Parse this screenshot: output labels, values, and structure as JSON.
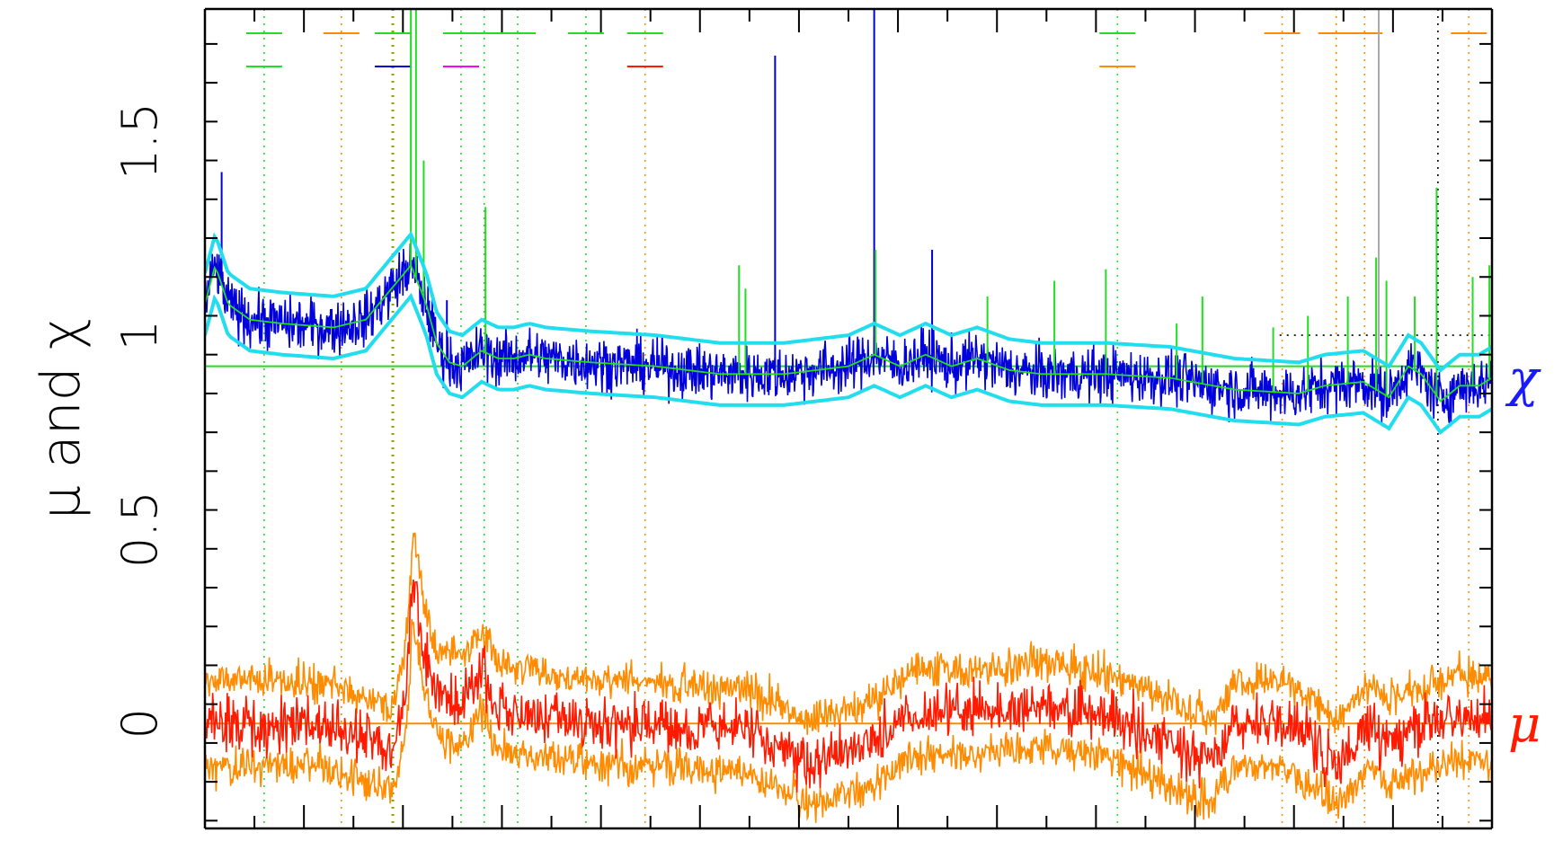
{
  "chart_data": {
    "type": "line",
    "ylabel": "μ and χ",
    "ylim": [
      -0.27,
      1.84
    ],
    "xlim": [
      0,
      1000
    ],
    "yticks": [
      {
        "value": 0,
        "label": "0"
      },
      {
        "value": 0.5,
        "label": "0.5"
      },
      {
        "value": 1,
        "label": "1"
      },
      {
        "value": 1.5,
        "label": "1.5"
      }
    ],
    "grid": false,
    "reference_lines": [
      {
        "name": "chi-unity-line",
        "y": 0.92,
        "color": "#22dd22"
      },
      {
        "name": "mu-zero-line",
        "y": 0.0,
        "color": "#ff8c00"
      },
      {
        "name": "dotted-reference-line",
        "y": 1.0,
        "x_from": 835,
        "x_to": 1000,
        "color": "#000000"
      }
    ],
    "series": [
      {
        "name": "χ",
        "color": "#0000dd",
        "label_color": "#1a1aff",
        "smooth_color": "#22dd22",
        "band_color": "#22ddee",
        "x": [
          0,
          8,
          18,
          35,
          60,
          100,
          125,
          145,
          160,
          172,
          180,
          190,
          200,
          215,
          228,
          240,
          252,
          265,
          300,
          350,
          400,
          450,
          500,
          520,
          540,
          560,
          580,
          600,
          625,
          650,
          700,
          750,
          800,
          850,
          870,
          900,
          920,
          935,
          945,
          960,
          975,
          990,
          1000
        ],
        "values": [
          1.08,
          1.18,
          1.08,
          1.04,
          1.03,
          1.02,
          1.04,
          1.12,
          1.18,
          1.08,
          0.98,
          0.93,
          0.92,
          0.96,
          0.94,
          0.94,
          0.95,
          0.94,
          0.93,
          0.92,
          0.9,
          0.9,
          0.92,
          0.95,
          0.92,
          0.95,
          0.92,
          0.94,
          0.91,
          0.9,
          0.9,
          0.89,
          0.86,
          0.85,
          0.87,
          0.88,
          0.84,
          0.92,
          0.9,
          0.83,
          0.87,
          0.87,
          0.89
        ],
        "band_halfwidth": 0.08
      },
      {
        "name": "μ",
        "color": "#ff1a00",
        "label_color": "#ff1a00",
        "band_color": "#ff8c00",
        "x": [
          0,
          40,
          90,
          130,
          145,
          155,
          162,
          170,
          180,
          200,
          215,
          225,
          260,
          320,
          360,
          420,
          470,
          520,
          550,
          600,
          650,
          700,
          750,
          780,
          800,
          840,
          880,
          905,
          920,
          950,
          975,
          1000
        ],
        "values": [
          0.0,
          0.0,
          0.0,
          -0.05,
          -0.08,
          0.05,
          0.38,
          0.2,
          0.08,
          0.05,
          0.15,
          0.05,
          0.02,
          0.0,
          0.0,
          -0.02,
          -0.1,
          -0.05,
          0.03,
          0.03,
          0.05,
          0.02,
          -0.05,
          -0.1,
          0.0,
          0.0,
          -0.1,
          0.0,
          -0.05,
          0.0,
          0.02,
          0.0
        ],
        "band_halfwidth": 0.11
      }
    ],
    "spikes": [
      {
        "x": 13,
        "value": 1.42,
        "color": "#0000dd"
      },
      {
        "x": 160,
        "value": 1.84,
        "color": "#22dd22"
      },
      {
        "x": 164,
        "value": 1.84,
        "color": "#22dd22"
      },
      {
        "x": 170,
        "value": 1.45,
        "color": "#22dd22"
      },
      {
        "x": 188,
        "value": 1.09,
        "color": "#0000dd"
      },
      {
        "x": 218,
        "value": 1.33,
        "color": "#22dd22"
      },
      {
        "x": 415,
        "value": 1.18,
        "color": "#22dd22"
      },
      {
        "x": 420,
        "value": 1.12,
        "color": "#22dd22"
      },
      {
        "x": 443,
        "value": 1.72,
        "color": "#0000dd"
      },
      {
        "x": 520,
        "value": 1.84,
        "color": "#0000dd"
      },
      {
        "x": 521,
        "value": 1.22,
        "color": "#22dd22"
      },
      {
        "x": 565,
        "value": 1.22,
        "color": "#0000dd"
      },
      {
        "x": 608,
        "value": 1.1,
        "color": "#22dd22"
      },
      {
        "x": 660,
        "value": 1.14,
        "color": "#22dd22"
      },
      {
        "x": 700,
        "value": 1.17,
        "color": "#22dd22"
      },
      {
        "x": 755,
        "value": 1.03,
        "color": "#22dd22"
      },
      {
        "x": 775,
        "value": 1.1,
        "color": "#22dd22"
      },
      {
        "x": 830,
        "value": 1.02,
        "color": "#22dd22"
      },
      {
        "x": 857,
        "value": 1.05,
        "color": "#22dd22"
      },
      {
        "x": 888,
        "value": 1.1,
        "color": "#22dd22"
      },
      {
        "x": 910,
        "value": 1.2,
        "color": "#22dd22"
      },
      {
        "x": 918,
        "value": 1.14,
        "color": "#22dd22"
      },
      {
        "x": 940,
        "value": 1.1,
        "color": "#22dd22"
      },
      {
        "x": 957,
        "value": 1.38,
        "color": "#22dd22"
      },
      {
        "x": 985,
        "value": 1.15,
        "color": "#22dd22"
      },
      {
        "x": 998,
        "value": 1.18,
        "color": "#22dd22"
      },
      {
        "x": 912,
        "value": 1.84,
        "color": "#aaaaaa"
      }
    ],
    "vertical_markers": [
      {
        "x": 46,
        "color": "#22dd22",
        "style": "dotted"
      },
      {
        "x": 106,
        "color": "#ff8c00",
        "style": "dotted"
      },
      {
        "x": 146,
        "color": "#88aa00",
        "style": "dotted"
      },
      {
        "x": 199,
        "color": "#22dd22",
        "style": "dotted"
      },
      {
        "x": 217,
        "color": "#22dd22",
        "style": "dotted"
      },
      {
        "x": 243,
        "color": "#22dd22",
        "style": "dotted"
      },
      {
        "x": 296,
        "color": "#22dd22",
        "style": "dotted"
      },
      {
        "x": 342,
        "color": "#ff8c00",
        "style": "dotted"
      },
      {
        "x": 709,
        "color": "#22dd22",
        "style": "dotted"
      },
      {
        "x": 837,
        "color": "#ff8c00",
        "style": "dotted"
      },
      {
        "x": 879,
        "color": "#ff8c00",
        "style": "dotted"
      },
      {
        "x": 901,
        "color": "#ff8c00",
        "style": "dotted"
      },
      {
        "x": 958,
        "color": "#000000",
        "style": "dotted"
      },
      {
        "x": 982,
        "color": "#ff8c00",
        "style": "dotted"
      }
    ],
    "line_ticks": [
      {
        "x": 46,
        "row": 1,
        "color": "#22dd22"
      },
      {
        "x": 46,
        "row": 2,
        "color": "#22dd22"
      },
      {
        "x": 106,
        "row": 1,
        "color": "#ff8c00"
      },
      {
        "x": 146,
        "row": 1,
        "color": "#22dd22"
      },
      {
        "x": 146,
        "row": 2,
        "color": "#0000dd"
      },
      {
        "x": 199,
        "row": 1,
        "color": "#22dd22"
      },
      {
        "x": 199,
        "row": 2,
        "color": "#ff00ff"
      },
      {
        "x": 217,
        "row": 1,
        "color": "#22dd22"
      },
      {
        "x": 243,
        "row": 1,
        "color": "#22dd22"
      },
      {
        "x": 296,
        "row": 1,
        "color": "#22dd22"
      },
      {
        "x": 342,
        "row": 1,
        "color": "#22dd22"
      },
      {
        "x": 342,
        "row": 2,
        "color": "#ff1a00"
      },
      {
        "x": 709,
        "row": 1,
        "color": "#22dd22"
      },
      {
        "x": 709,
        "row": 2,
        "color": "#ff8c00"
      },
      {
        "x": 837,
        "row": 1,
        "color": "#ff8c00"
      },
      {
        "x": 879,
        "row": 1,
        "color": "#ff8c00"
      },
      {
        "x": 901,
        "row": 1,
        "color": "#ff8c00"
      },
      {
        "x": 982,
        "row": 1,
        "color": "#ff8c00"
      }
    ]
  }
}
